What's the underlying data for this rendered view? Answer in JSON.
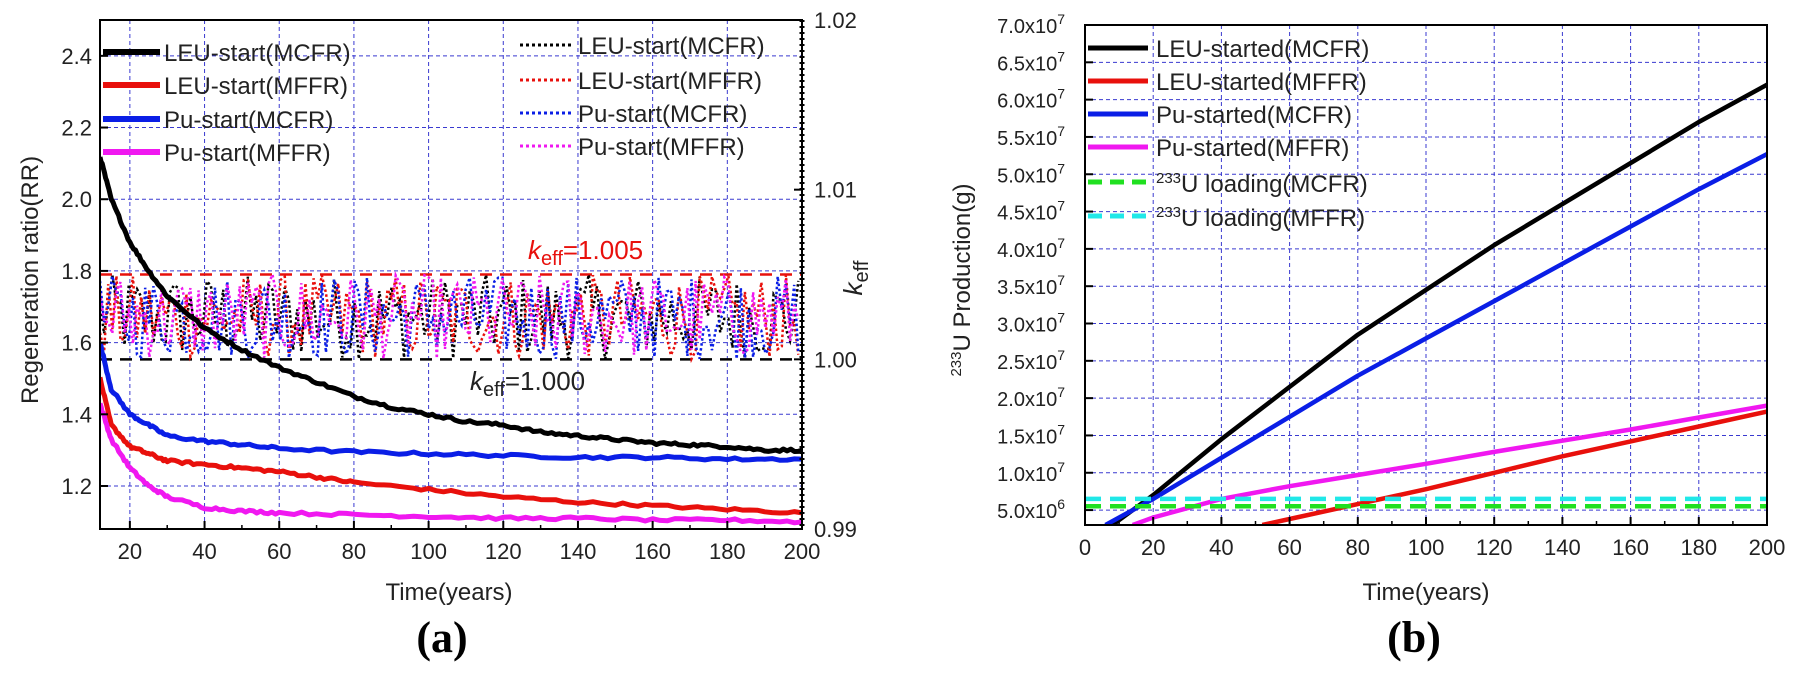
{
  "chart_data": [
    {
      "id": "a",
      "type": "line",
      "panel_label": "(a)",
      "xlabel": "Time(years)",
      "ylabel": "Regeneration ratio(RR)",
      "y2label": "k",
      "y2label_sub": "eff",
      "xlim": [
        12,
        200
      ],
      "ylim": [
        1.08,
        2.5
      ],
      "y2lim": [
        0.99,
        1.02
      ],
      "xticks": [
        20,
        40,
        60,
        80,
        100,
        120,
        140,
        160,
        180,
        200
      ],
      "yticks": [
        1.2,
        1.4,
        1.6,
        1.8,
        2.0,
        2.2,
        2.4
      ],
      "y2ticks": [
        0.99,
        1.0,
        1.01,
        1.02
      ],
      "xtick_labels": [
        "20",
        "40",
        "60",
        "80",
        "100",
        "120",
        "140",
        "160",
        "180",
        "200"
      ],
      "ytick_labels": [
        "1.2",
        "1.4",
        "1.6",
        "1.8",
        "2.0",
        "2.2",
        "2.4"
      ],
      "y2tick_labels": [
        "0.99",
        "1.00",
        "1.01",
        "1.02"
      ],
      "grid": true,
      "series": [
        {
          "name": "LEU-start(MCFR)",
          "color": "#000000",
          "style": "solid",
          "axis": "left",
          "x": [
            12,
            15,
            20,
            25,
            30,
            40,
            50,
            60,
            70,
            80,
            90,
            100,
            110,
            120,
            130,
            140,
            150,
            160,
            170,
            180,
            190,
            200
          ],
          "y": [
            2.12,
            2.0,
            1.88,
            1.8,
            1.73,
            1.64,
            1.58,
            1.53,
            1.49,
            1.45,
            1.42,
            1.4,
            1.38,
            1.37,
            1.35,
            1.34,
            1.33,
            1.32,
            1.315,
            1.31,
            1.3,
            1.3
          ]
        },
        {
          "name": "LEU-start(MFFR)",
          "color": "#e8100c",
          "style": "solid",
          "axis": "left",
          "x": [
            12,
            15,
            20,
            25,
            30,
            40,
            50,
            60,
            70,
            80,
            100,
            120,
            140,
            160,
            180,
            200
          ],
          "y": [
            1.5,
            1.37,
            1.31,
            1.29,
            1.27,
            1.26,
            1.25,
            1.24,
            1.225,
            1.21,
            1.19,
            1.17,
            1.155,
            1.145,
            1.135,
            1.125
          ]
        },
        {
          "name": "Pu-start(MCFR)",
          "color": "#0a1ee6",
          "style": "solid",
          "axis": "left",
          "x": [
            12,
            15,
            20,
            25,
            30,
            40,
            50,
            60,
            80,
            100,
            120,
            140,
            160,
            180,
            200
          ],
          "y": [
            1.6,
            1.47,
            1.4,
            1.37,
            1.34,
            1.325,
            1.315,
            1.305,
            1.295,
            1.29,
            1.285,
            1.28,
            1.28,
            1.275,
            1.275
          ]
        },
        {
          "name": "Pu-start(MFFR)",
          "color": "#f018f0",
          "style": "solid",
          "axis": "left",
          "x": [
            12,
            15,
            20,
            25,
            30,
            40,
            50,
            60,
            80,
            100,
            120,
            140,
            160,
            180,
            200
          ],
          "y": [
            1.43,
            1.33,
            1.25,
            1.2,
            1.17,
            1.14,
            1.13,
            1.125,
            1.12,
            1.115,
            1.11,
            1.11,
            1.105,
            1.105,
            1.1
          ]
        },
        {
          "name": "LEU-start(MCFR)",
          "color": "#000000",
          "style": "dotted",
          "axis": "right",
          "pattern": "oscillating",
          "range": [
            1.0,
            1.005
          ],
          "x_range": [
            12,
            200
          ]
        },
        {
          "name": "LEU-start(MFFR)",
          "color": "#e8100c",
          "style": "dotted",
          "axis": "right",
          "pattern": "oscillating",
          "range": [
            1.0,
            1.005
          ],
          "x_range": [
            12,
            200
          ]
        },
        {
          "name": "Pu-start(MCFR)",
          "color": "#0a1ee6",
          "style": "dotted",
          "axis": "right",
          "pattern": "oscillating",
          "range": [
            1.0,
            1.005
          ],
          "x_range": [
            12,
            200
          ]
        },
        {
          "name": "Pu-start(MFFR)",
          "color": "#f018f0",
          "style": "dotted",
          "axis": "right",
          "pattern": "oscillating",
          "range": [
            1.0,
            1.005
          ],
          "x_range": [
            12,
            200
          ]
        }
      ],
      "reference_lines": [
        {
          "value": 1.005,
          "axis": "right",
          "color": "#e8100c",
          "label_k": "k",
          "label_sub": "eff",
          "label_val": "=1.005"
        },
        {
          "value": 1.0,
          "axis": "right",
          "color": "#000000",
          "label_k": "k",
          "label_sub": "eff",
          "label_val": "=1.000"
        }
      ],
      "legend_placement": "top-left and top-right"
    },
    {
      "id": "b",
      "type": "line",
      "panel_label": "(b)",
      "xlabel": "Time(years)",
      "ylabel_sup": "233",
      "ylabel": "U Production(g)",
      "xlim": [
        0,
        200
      ],
      "ylim": [
        3000000,
        70000000
      ],
      "xticks": [
        0,
        20,
        40,
        60,
        80,
        100,
        120,
        140,
        160,
        180,
        200
      ],
      "xtick_labels": [
        "0",
        "20",
        "40",
        "60",
        "80",
        "100",
        "120",
        "140",
        "160",
        "180",
        "200"
      ],
      "yticks": [
        5000000,
        10000000,
        15000000,
        20000000,
        25000000,
        30000000,
        35000000,
        40000000,
        45000000,
        50000000,
        55000000,
        60000000,
        65000000,
        70000000
      ],
      "ytick_mantissas": [
        "5.0x10",
        "1.0x10",
        "1.5x10",
        "2.0x10",
        "2.5x10",
        "3.0x10",
        "3.5x10",
        "4.0x10",
        "4.5x10",
        "5.0x10",
        "5.5x10",
        "6.0x10",
        "6.5x10",
        "7.0x10"
      ],
      "ytick_exps": [
        "6",
        "7",
        "7",
        "7",
        "7",
        "7",
        "7",
        "7",
        "7",
        "7",
        "7",
        "7",
        "7",
        "7"
      ],
      "grid": true,
      "series": [
        {
          "name": "LEU-started(MCFR)",
          "color": "#000000",
          "style": "solid",
          "x": [
            8,
            20,
            40,
            60,
            80,
            100,
            120,
            140,
            160,
            180,
            200
          ],
          "y": [
            3000000,
            7000000,
            14500000,
            21500000,
            28500000,
            34500000,
            40500000,
            46000000,
            51500000,
            57000000,
            62000000
          ]
        },
        {
          "name": "LEU-started(MFFR)",
          "color": "#e8100c",
          "style": "solid",
          "x": [
            52,
            60,
            80,
            100,
            120,
            140,
            160,
            180,
            200
          ],
          "y": [
            3000000,
            3800000,
            5800000,
            7800000,
            10000000,
            12200000,
            14200000,
            16200000,
            18200000
          ]
        },
        {
          "name": "Pu-started(MCFR)",
          "color": "#0a1ee6",
          "style": "solid",
          "x": [
            6,
            20,
            40,
            60,
            80,
            100,
            120,
            140,
            160,
            180,
            200
          ],
          "y": [
            3000000,
            6500000,
            12000000,
            17500000,
            23000000,
            28000000,
            33000000,
            38000000,
            43000000,
            48000000,
            52700000
          ]
        },
        {
          "name": "Pu-started(MFFR)",
          "color": "#f018f0",
          "style": "solid",
          "x": [
            14,
            20,
            40,
            60,
            80,
            100,
            120,
            140,
            160,
            180,
            200
          ],
          "y": [
            3000000,
            4000000,
            6500000,
            8200000,
            9700000,
            11200000,
            12800000,
            14300000,
            15800000,
            17400000,
            19000000
          ]
        },
        {
          "name": "U loading(MCFR)",
          "sup": "233",
          "color": "#20e020",
          "style": "dashed",
          "x": [
            0,
            200
          ],
          "y": [
            5500000,
            5500000
          ]
        },
        {
          "name": "U loading(MFFR)",
          "sup": "233",
          "color": "#20e8e8",
          "style": "dashed",
          "x": [
            0,
            200
          ],
          "y": [
            6500000,
            6500000
          ]
        }
      ],
      "legend_placement": "top-left"
    }
  ]
}
